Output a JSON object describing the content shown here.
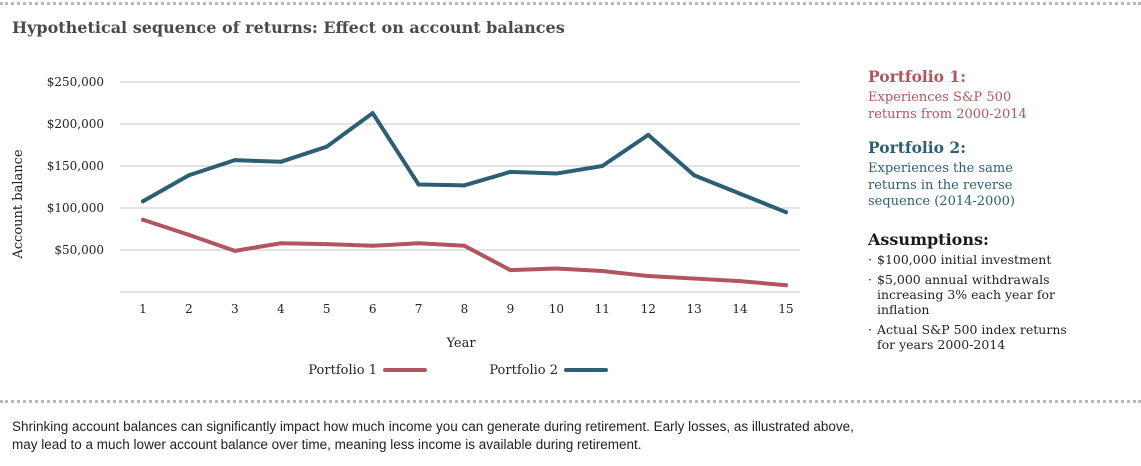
{
  "title": "Hypothetical sequence of returns: Effect on account balances",
  "legend_panel": {
    "portfolio1": {
      "heading": "Portfolio 1:",
      "text_lines": [
        "Experiences S&P 500",
        "returns from 2000-2014"
      ]
    },
    "portfolio2": {
      "heading": "Portfolio 2:",
      "text_lines": [
        "Experiences the same",
        "returns in the reverse",
        "sequence (2014-2000)"
      ]
    },
    "assumptions": {
      "heading": "Assumptions:",
      "items": [
        "$100,000 initial investment",
        "$5,000 annual withdrawals increasing 3% each year for inflation",
        "Actual S&P 500 index returns for years 2000-2014"
      ]
    }
  },
  "footer_lines": [
    "Shrinking account balances can significantly impact how much income you can generate during retirement. Early losses, as illustrated above,",
    "may lead to a much lower account balance over time, meaning less income is available during retirement."
  ],
  "colors": {
    "portfolio1": "#b35560",
    "portfolio2": "#2c5f74",
    "grid": "#c8c8c8"
  },
  "chart_data": {
    "type": "line",
    "xlabel": "Year",
    "ylabel": "Account balance",
    "x": [
      1,
      2,
      3,
      4,
      5,
      6,
      7,
      8,
      9,
      10,
      11,
      12,
      13,
      14,
      15
    ],
    "x_tick_labels": [
      "1",
      "2",
      "3",
      "4",
      "5",
      "6",
      "7",
      "8",
      "9",
      "10",
      "11",
      "12",
      "13",
      "14",
      "15"
    ],
    "y_ticks": [
      50000,
      100000,
      150000,
      200000,
      250000
    ],
    "y_tick_labels": [
      "$50,000",
      "$100,000",
      "$150,000",
      "$200,000",
      "$250,000"
    ],
    "ylim": [
      0,
      250000
    ],
    "grid": true,
    "legend_position": "bottom",
    "series": [
      {
        "name": "Portfolio 1",
        "color": "#b35560",
        "values": [
          86000,
          68000,
          49000,
          58000,
          57000,
          55000,
          58000,
          55000,
          26000,
          28000,
          25000,
          19000,
          16000,
          13000,
          8000
        ]
      },
      {
        "name": "Portfolio 2",
        "color": "#2c5f74",
        "values": [
          108000,
          139000,
          157000,
          155000,
          173000,
          213000,
          128000,
          127000,
          143000,
          141000,
          150000,
          187000,
          139000,
          117000,
          95000
        ]
      }
    ]
  }
}
